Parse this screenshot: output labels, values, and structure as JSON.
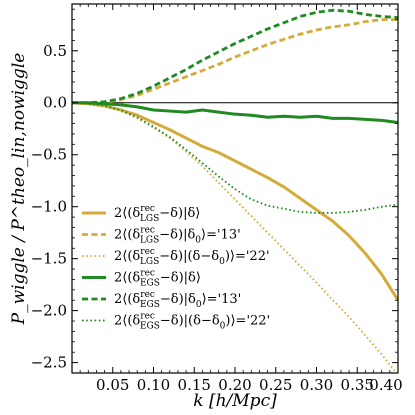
{
  "chart_data": {
    "type": "line",
    "xlabel": "k [h/Mpc]",
    "ylabel": "P_wiggle / P^theo_lin,nowiggle",
    "xlim": [
      0.0,
      0.4
    ],
    "ylim": [
      -2.6,
      0.95
    ],
    "xticks": [
      0.05,
      0.1,
      0.15,
      0.2,
      0.25,
      0.3,
      0.35,
      0.4
    ],
    "xtick_labels": [
      "0.05",
      "0.10",
      "0.15",
      "0.20",
      "0.25",
      "0.30",
      "0.35",
      "0.40"
    ],
    "yticks": [
      0.5,
      0.0,
      -0.5,
      -1.0,
      -1.5,
      -2.0,
      -2.5
    ],
    "ytick_labels": [
      "0.5",
      "0.0",
      "−0.5",
      "−1.0",
      "−1.5",
      "−2.0",
      "−2.5"
    ],
    "grid": false,
    "legend_position": "bottom-left",
    "reference_line_y": 0.0,
    "series": [
      {
        "name": "2⟨(δ^rec_LGS − δ)|δ⟩",
        "legend": {
          "prefix": "2",
          "sup": "rec",
          "sub": "LGS",
          "middle": "−δ)|δ⟩",
          "suffix": ""
        },
        "color": "#d4aa38",
        "style": "solid",
        "x": [
          0.0,
          0.02,
          0.04,
          0.06,
          0.08,
          0.1,
          0.12,
          0.14,
          0.16,
          0.18,
          0.2,
          0.22,
          0.24,
          0.26,
          0.28,
          0.3,
          0.32,
          0.34,
          0.36,
          0.38,
          0.4
        ],
        "y": [
          0.0,
          -0.01,
          -0.03,
          -0.07,
          -0.12,
          -0.19,
          -0.26,
          -0.34,
          -0.42,
          -0.48,
          -0.56,
          -0.64,
          -0.72,
          -0.81,
          -0.92,
          -1.03,
          -1.14,
          -1.28,
          -1.45,
          -1.65,
          -1.9
        ]
      },
      {
        "name": "2⟨(δ^rec_LGS − δ)|δ0⟩ = '13'",
        "legend": {
          "prefix": "2",
          "sup": "rec",
          "sub": "LGS",
          "middle": "−δ)|δ",
          "mid_sub": "0",
          "middle2": "⟩='13'",
          "suffix": ""
        },
        "color": "#d4aa38",
        "style": "dashed",
        "x": [
          0.0,
          0.02,
          0.04,
          0.06,
          0.08,
          0.1,
          0.12,
          0.14,
          0.16,
          0.18,
          0.2,
          0.22,
          0.24,
          0.26,
          0.28,
          0.3,
          0.32,
          0.34,
          0.36,
          0.38,
          0.4
        ],
        "y": [
          0.0,
          0.0,
          0.0,
          0.03,
          0.07,
          0.13,
          0.19,
          0.25,
          0.31,
          0.37,
          0.44,
          0.5,
          0.56,
          0.61,
          0.66,
          0.7,
          0.73,
          0.75,
          0.78,
          0.8,
          0.8
        ]
      },
      {
        "name": "2⟨(δ^rec_LGS − δ)|(δ − δ0)⟩ = '22'",
        "legend": {
          "prefix": "2",
          "sup": "rec",
          "sub": "LGS",
          "middle": "−δ)|(δ−δ",
          "mid_sub": "0",
          "middle2": ")⟩='22'",
          "suffix": ""
        },
        "color": "#d4aa38",
        "style": "dotted",
        "x": [
          0.0,
          0.02,
          0.04,
          0.06,
          0.08,
          0.1,
          0.12,
          0.14,
          0.16,
          0.18,
          0.2,
          0.22,
          0.24,
          0.26,
          0.28,
          0.3,
          0.32,
          0.34,
          0.36,
          0.38,
          0.4
        ],
        "y": [
          0.0,
          -0.01,
          -0.03,
          -0.08,
          -0.15,
          -0.24,
          -0.34,
          -0.47,
          -0.61,
          -0.77,
          -0.93,
          -1.09,
          -1.25,
          -1.41,
          -1.57,
          -1.73,
          -1.9,
          -2.06,
          -2.24,
          -2.42,
          -2.62
        ]
      },
      {
        "name": "2⟨(δ^rec_EGS − δ)|δ⟩",
        "legend": {
          "prefix": "2",
          "sup": "rec",
          "sub": "EGS",
          "middle": "−δ)|δ⟩",
          "suffix": ""
        },
        "color": "#1f8a1f",
        "style": "solid",
        "x": [
          0.0,
          0.02,
          0.04,
          0.06,
          0.08,
          0.1,
          0.12,
          0.14,
          0.16,
          0.18,
          0.2,
          0.22,
          0.24,
          0.26,
          0.28,
          0.3,
          0.32,
          0.34,
          0.36,
          0.38,
          0.4
        ],
        "y": [
          0.0,
          0.0,
          -0.01,
          -0.02,
          -0.04,
          -0.07,
          -0.08,
          -0.09,
          -0.07,
          -0.09,
          -0.11,
          -0.12,
          -0.14,
          -0.13,
          -0.14,
          -0.13,
          -0.15,
          -0.15,
          -0.16,
          -0.17,
          -0.19
        ]
      },
      {
        "name": "2⟨(δ^rec_EGS − δ)|δ0⟩ = '13'",
        "legend": {
          "prefix": "2",
          "sup": "rec",
          "sub": "EGS",
          "middle": "−δ)|δ",
          "mid_sub": "0",
          "middle2": "⟩='13'",
          "suffix": ""
        },
        "color": "#1f8a1f",
        "style": "dashed",
        "x": [
          0.0,
          0.02,
          0.04,
          0.06,
          0.08,
          0.1,
          0.12,
          0.14,
          0.16,
          0.18,
          0.2,
          0.22,
          0.24,
          0.26,
          0.28,
          0.3,
          0.32,
          0.34,
          0.36,
          0.38,
          0.4
        ],
        "y": [
          0.0,
          0.0,
          0.01,
          0.04,
          0.09,
          0.16,
          0.24,
          0.32,
          0.41,
          0.49,
          0.57,
          0.64,
          0.71,
          0.77,
          0.83,
          0.87,
          0.89,
          0.88,
          0.85,
          0.83,
          0.82
        ]
      },
      {
        "name": "2⟨(δ^rec_EGS − δ)|(δ − δ0)⟩ = '22'",
        "legend": {
          "prefix": "2",
          "sup": "rec",
          "sub": "EGS",
          "middle": "−δ)|(δ−δ",
          "mid_sub": "0",
          "middle2": ")⟩='22'",
          "suffix": ""
        },
        "color": "#1f8a1f",
        "style": "dotted",
        "x": [
          0.0,
          0.02,
          0.04,
          0.06,
          0.08,
          0.1,
          0.12,
          0.14,
          0.16,
          0.18,
          0.2,
          0.22,
          0.24,
          0.26,
          0.28,
          0.3,
          0.32,
          0.34,
          0.36,
          0.38,
          0.4
        ],
        "y": [
          0.0,
          -0.01,
          -0.03,
          -0.07,
          -0.14,
          -0.23,
          -0.33,
          -0.45,
          -0.58,
          -0.71,
          -0.83,
          -0.93,
          -0.99,
          -1.02,
          -1.05,
          -1.06,
          -1.06,
          -1.05,
          -1.03,
          -1.0,
          -0.98
        ]
      }
    ]
  }
}
